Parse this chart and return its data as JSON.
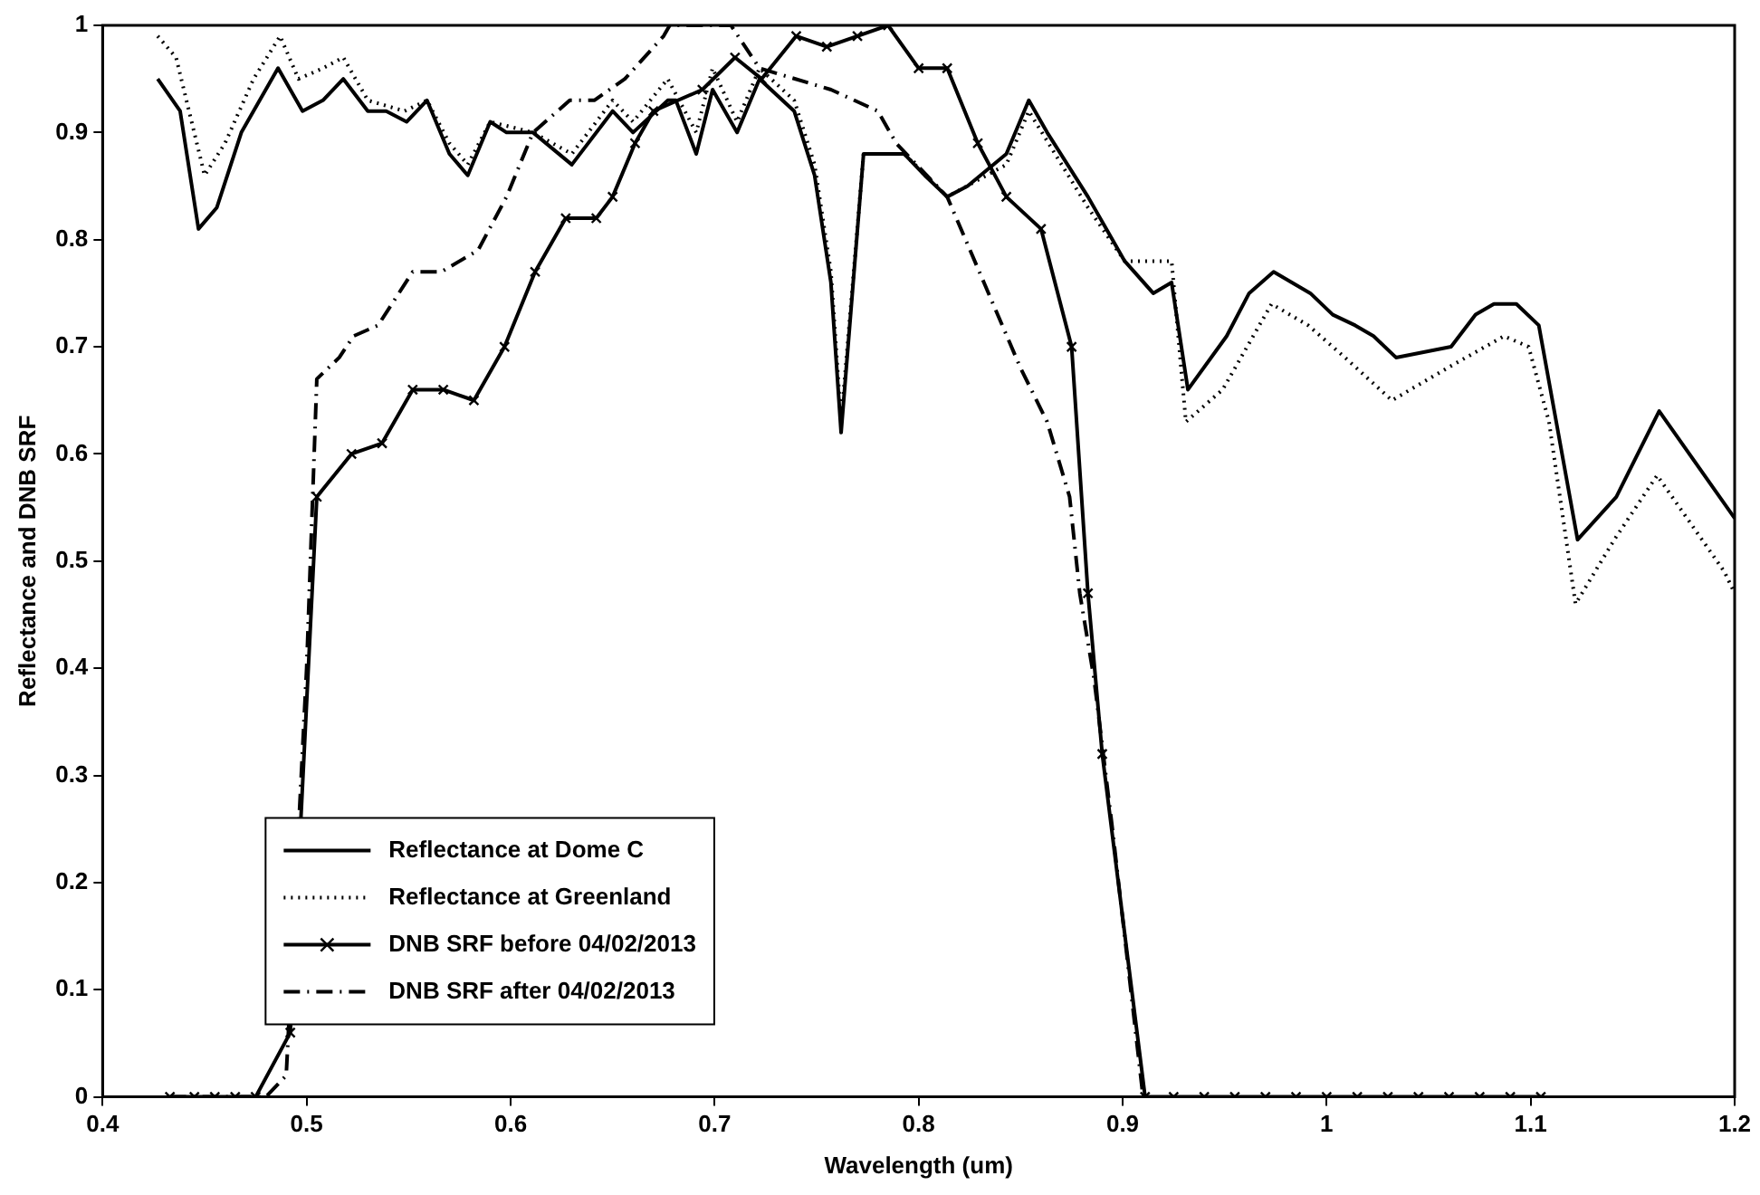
{
  "chart_data": {
    "type": "line",
    "xlabel": "Wavelength (um)",
    "ylabel": "Reflectance and DNB SRF",
    "xlim": [
      0.4,
      1.2
    ],
    "xticks": [
      0.4,
      0.5,
      0.6,
      0.7,
      0.8,
      0.9,
      1,
      1.1,
      1.2
    ],
    "ylim": [
      0,
      1
    ],
    "yticks": [
      0,
      0.1,
      0.2,
      0.3,
      0.4,
      0.5,
      0.6,
      0.7,
      0.8,
      0.9,
      1
    ],
    "legend": "bottom left",
    "series": [
      {
        "name": "Reflectance at Dome C",
        "color": "#000000",
        "line_style": "solid",
        "marker": "none",
        "x": [
          0.427,
          0.438,
          0.447,
          0.456,
          0.468,
          0.486,
          0.498,
          0.508,
          0.518,
          0.53,
          0.539,
          0.549,
          0.559,
          0.57,
          0.579,
          0.59,
          0.598,
          0.611,
          0.63,
          0.65,
          0.66,
          0.677,
          0.681,
          0.691,
          0.699,
          0.711,
          0.722,
          0.739,
          0.749,
          0.757,
          0.762,
          0.773,
          0.793,
          0.803,
          0.814,
          0.824,
          0.843,
          0.854,
          0.863,
          0.883,
          0.901,
          0.915,
          0.924,
          0.932,
          0.951,
          0.962,
          0.974,
          0.992,
          1.003,
          1.014,
          1.023,
          1.034,
          1.061,
          1.073,
          1.082,
          1.093,
          1.104,
          1.123,
          1.142,
          1.163,
          1.2
        ],
        "values": [
          0.95,
          0.92,
          0.81,
          0.83,
          0.9,
          0.96,
          0.92,
          0.93,
          0.95,
          0.92,
          0.92,
          0.91,
          0.93,
          0.88,
          0.86,
          0.91,
          0.9,
          0.9,
          0.87,
          0.92,
          0.9,
          0.93,
          0.93,
          0.88,
          0.94,
          0.9,
          0.95,
          0.92,
          0.86,
          0.76,
          0.62,
          0.88,
          0.88,
          0.86,
          0.84,
          0.85,
          0.88,
          0.93,
          0.9,
          0.84,
          0.78,
          0.75,
          0.76,
          0.66,
          0.71,
          0.75,
          0.77,
          0.75,
          0.73,
          0.72,
          0.71,
          0.69,
          0.7,
          0.73,
          0.74,
          0.74,
          0.72,
          0.52,
          0.56,
          0.64,
          0.54
        ]
      },
      {
        "name": "Reflectance at Greenland",
        "color": "#000000",
        "line_style": "dotted",
        "marker": "none",
        "x": [
          0.427,
          0.436,
          0.45,
          0.46,
          0.474,
          0.487,
          0.496,
          0.508,
          0.518,
          0.53,
          0.548,
          0.559,
          0.57,
          0.579,
          0.59,
          0.611,
          0.63,
          0.65,
          0.66,
          0.677,
          0.691,
          0.699,
          0.711,
          0.722,
          0.739,
          0.749,
          0.757,
          0.762,
          0.773,
          0.793,
          0.814,
          0.843,
          0.854,
          0.883,
          0.901,
          0.924,
          0.931,
          0.949,
          0.973,
          0.991,
          1.009,
          1.032,
          1.059,
          1.087,
          1.099,
          1.109,
          1.122,
          1.141,
          1.162,
          1.195,
          1.2
        ],
        "values": [
          0.99,
          0.97,
          0.86,
          0.89,
          0.95,
          0.99,
          0.95,
          0.96,
          0.97,
          0.93,
          0.92,
          0.93,
          0.89,
          0.87,
          0.91,
          0.9,
          0.88,
          0.93,
          0.91,
          0.95,
          0.9,
          0.96,
          0.91,
          0.96,
          0.93,
          0.87,
          0.77,
          0.63,
          0.88,
          0.88,
          0.84,
          0.87,
          0.92,
          0.83,
          0.78,
          0.78,
          0.63,
          0.66,
          0.74,
          0.72,
          0.69,
          0.65,
          0.68,
          0.71,
          0.7,
          0.63,
          0.46,
          0.52,
          0.58,
          0.49,
          0.47
        ]
      },
      {
        "name": "DNB SRF before 04/02/2013",
        "color": "#000000",
        "line_style": "solid",
        "marker": "cross",
        "x": [
          0.433,
          0.445,
          0.455,
          0.465,
          0.475,
          0.492,
          0.505,
          0.522,
          0.537,
          0.552,
          0.567,
          0.582,
          0.597,
          0.612,
          0.627,
          0.642,
          0.65,
          0.661,
          0.67,
          0.694,
          0.71,
          0.723,
          0.74,
          0.755,
          0.77,
          0.785,
          0.8,
          0.814,
          0.829,
          0.843,
          0.86,
          0.875,
          0.883,
          0.89,
          0.911,
          0.925,
          0.94,
          0.955,
          0.97,
          0.985,
          1.0,
          1.015,
          1.03,
          1.045,
          1.06,
          1.075,
          1.09,
          1.105
        ],
        "values": [
          0,
          0,
          0,
          0,
          0,
          0.06,
          0.56,
          0.6,
          0.61,
          0.66,
          0.66,
          0.65,
          0.7,
          0.77,
          0.82,
          0.82,
          0.84,
          0.89,
          0.92,
          0.94,
          0.97,
          0.95,
          0.99,
          0.98,
          0.99,
          1,
          0.96,
          0.96,
          0.89,
          0.84,
          0.81,
          0.7,
          0.47,
          0.32,
          0,
          0,
          0,
          0,
          0,
          0,
          0,
          0,
          0,
          0,
          0,
          0,
          0,
          0
        ]
      },
      {
        "name": "DNB SRF after 04/02/2013",
        "color": "#000000",
        "line_style": "dashdot",
        "marker": "none",
        "x": [
          0.433,
          0.48,
          0.49,
          0.5,
          0.505,
          0.516,
          0.523,
          0.535,
          0.552,
          0.566,
          0.584,
          0.598,
          0.611,
          0.629,
          0.641,
          0.656,
          0.675,
          0.678,
          0.708,
          0.722,
          0.757,
          0.78,
          0.789,
          0.814,
          0.832,
          0.85,
          0.863,
          0.874,
          0.879,
          0.886,
          0.895,
          0.91
        ],
        "values": [
          0,
          0,
          0.02,
          0.4,
          0.67,
          0.69,
          0.71,
          0.72,
          0.77,
          0.77,
          0.79,
          0.84,
          0.9,
          0.93,
          0.93,
          0.95,
          0.99,
          1,
          1,
          0.96,
          0.94,
          0.92,
          0.89,
          0.84,
          0.76,
          0.68,
          0.63,
          0.56,
          0.47,
          0.39,
          0.25,
          0
        ]
      }
    ]
  }
}
